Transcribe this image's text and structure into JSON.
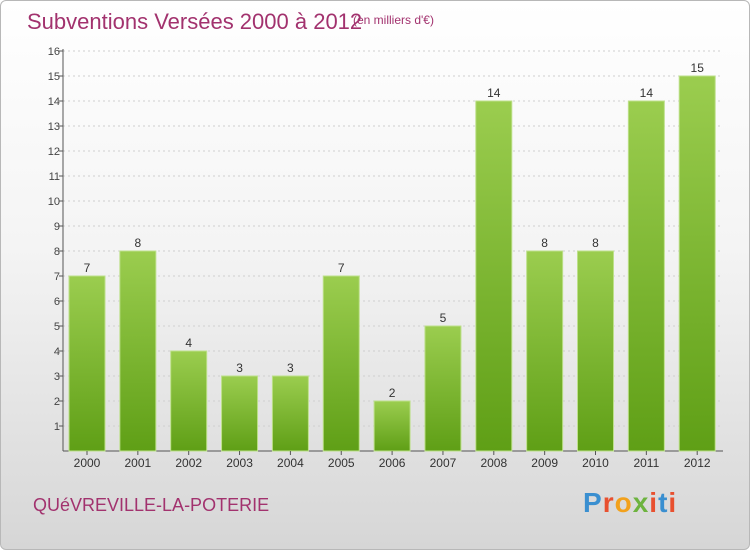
{
  "title": "Subventions Versées 2000 à 2012",
  "subtitle": "(en milliers d'€)",
  "commune": "QUéVREVILLE-LA-POTERIE",
  "logo": {
    "text": "Proxiti",
    "colors": [
      "#3a8fd0",
      "#e8502f",
      "#f2a11c",
      "#6db33f",
      "#e8502f",
      "#3a8fd0",
      "#e8502f"
    ]
  },
  "colors": {
    "title": "#a2326e",
    "bar_light": "#9bcd4f",
    "bar_dark": "#5f9f16",
    "grid": "#cfcfcf"
  },
  "chart_data": {
    "type": "bar",
    "categories": [
      "2000",
      "2001",
      "2002",
      "2003",
      "2004",
      "2005",
      "2006",
      "2007",
      "2008",
      "2009",
      "2010",
      "2011",
      "2012"
    ],
    "values": [
      7,
      8,
      4,
      3,
      3,
      7,
      2,
      5,
      14,
      8,
      8,
      14,
      15
    ],
    "y_ticks": [
      "1",
      "2",
      "3",
      "4",
      "5",
      "6",
      "7",
      "8",
      "9",
      "10",
      "11",
      "12",
      "13",
      "14",
      "15",
      "16"
    ],
    "ylim": [
      0,
      16
    ],
    "grid": true,
    "data_labels": true
  }
}
